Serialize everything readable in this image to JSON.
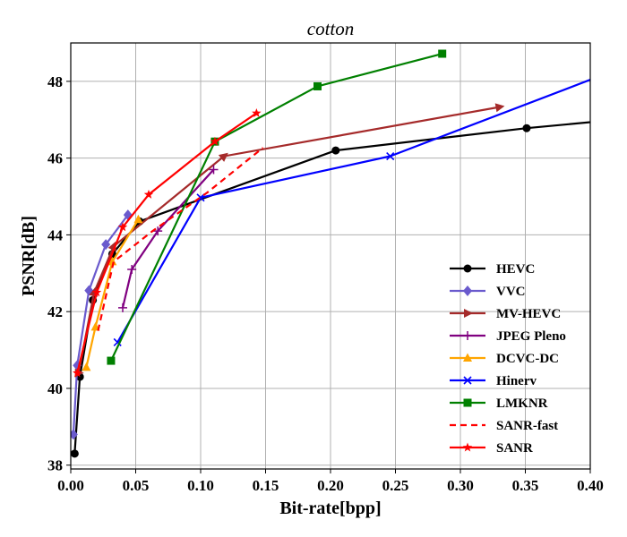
{
  "chart_data": {
    "type": "line",
    "title": "cotton",
    "xlabel": "Bit-rate[bpp]",
    "ylabel": "PSNR[dB]",
    "xlim": [
      0.0,
      0.4
    ],
    "ylim": [
      37.9,
      49.0
    ],
    "xticks": [
      "0.00",
      "0.05",
      "0.10",
      "0.15",
      "0.20",
      "0.25",
      "0.30",
      "0.35",
      "0.40"
    ],
    "yticks": [
      "38",
      "40",
      "42",
      "44",
      "46",
      "48"
    ],
    "xtick_values": [
      0.0,
      0.05,
      0.1,
      0.15,
      0.2,
      0.25,
      0.3,
      0.35,
      0.4
    ],
    "ytick_values": [
      38,
      40,
      42,
      44,
      46,
      48
    ],
    "grid": true,
    "legend_position": "lower-right",
    "series": [
      {
        "name": "HEVC",
        "color": "#000000",
        "marker": "circle",
        "dashed": false,
        "points": [
          [
            0.003,
            38.3
          ],
          [
            0.007,
            40.3
          ],
          [
            0.017,
            42.3
          ],
          [
            0.032,
            43.5
          ],
          [
            0.053,
            44.35
          ],
          [
            0.204,
            46.2
          ],
          [
            0.351,
            46.78
          ],
          [
            0.42,
            47.0
          ]
        ]
      },
      {
        "name": "VVC",
        "color": "#6a5acd",
        "marker": "diamond",
        "dashed": false,
        "points": [
          [
            0.002,
            38.8
          ],
          [
            0.005,
            40.6
          ],
          [
            0.014,
            42.55
          ],
          [
            0.027,
            43.75
          ],
          [
            0.044,
            44.52
          ]
        ]
      },
      {
        "name": "MV-HEVC",
        "color": "#a52a2a",
        "marker": "triangle-right",
        "dashed": false,
        "points": [
          [
            0.006,
            40.4
          ],
          [
            0.018,
            42.5
          ],
          [
            0.033,
            43.7
          ],
          [
            0.118,
            46.05
          ],
          [
            0.33,
            47.33
          ]
        ]
      },
      {
        "name": "JPEG Pleno",
        "color": "#800080",
        "marker": "plus",
        "dashed": false,
        "points": [
          [
            0.04,
            42.1
          ],
          [
            0.047,
            43.1
          ],
          [
            0.067,
            44.1
          ],
          [
            0.11,
            45.7
          ]
        ]
      },
      {
        "name": "DCVC-DC",
        "color": "#ffa500",
        "marker": "triangle-up",
        "dashed": false,
        "points": [
          [
            0.012,
            40.55
          ],
          [
            0.019,
            41.6
          ],
          [
            0.032,
            43.3
          ],
          [
            0.052,
            44.4
          ]
        ]
      },
      {
        "name": "Hinerv",
        "color": "#0000ff",
        "marker": "x",
        "dashed": false,
        "points": [
          [
            0.036,
            41.2
          ],
          [
            0.1,
            44.97
          ],
          [
            0.246,
            46.05
          ],
          [
            0.42,
            48.3
          ]
        ]
      },
      {
        "name": "LMKNR",
        "color": "#008000",
        "marker": "square",
        "dashed": false,
        "points": [
          [
            0.031,
            40.72
          ],
          [
            0.111,
            46.43
          ],
          [
            0.19,
            47.87
          ],
          [
            0.286,
            48.72
          ]
        ]
      },
      {
        "name": "SANR-fast",
        "color": "#ff0000",
        "marker": "none",
        "dashed": true,
        "points": [
          [
            0.021,
            41.5
          ],
          [
            0.033,
            43.3
          ],
          [
            0.063,
            44.1
          ],
          [
            0.105,
            45.1
          ],
          [
            0.148,
            46.27
          ]
        ]
      },
      {
        "name": "SANR",
        "color": "#ff0000",
        "marker": "star",
        "dashed": false,
        "points": [
          [
            0.005,
            40.4
          ],
          [
            0.02,
            42.5
          ],
          [
            0.04,
            44.2
          ],
          [
            0.06,
            45.05
          ],
          [
            0.111,
            46.43
          ],
          [
            0.143,
            47.17
          ]
        ]
      }
    ]
  }
}
